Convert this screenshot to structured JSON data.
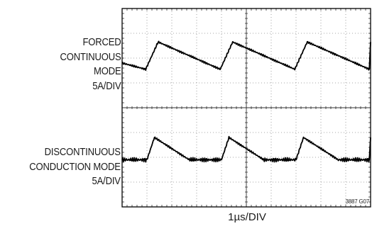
{
  "chart_data": {
    "type": "line",
    "subtype": "oscilloscope-trace",
    "divisions": {
      "x": 10,
      "y": 8
    },
    "grid": true,
    "xlabel": "1µs/DIV",
    "figure_id": "3887 G07",
    "colors": {
      "trace": "#000000",
      "grid": "#8a8a8a",
      "frame": "#000000"
    },
    "x_unit": "µs",
    "y_unit": "div",
    "traces": [
      {
        "label_lines": [
          "FORCED",
          "CONTINUOUS",
          "MODE",
          "5A/DIV"
        ],
        "x": [
          0,
          0.95,
          1.45,
          3.95,
          4.45,
          6.95,
          7.45,
          9.95,
          10
        ],
        "y": [
          5.8,
          5.55,
          6.65,
          5.55,
          6.65,
          5.55,
          6.65,
          5.55,
          6.65
        ]
      },
      {
        "label_lines": [
          "DISCONTINUOUS",
          "CONDUCTION MODE",
          "5A/DIV"
        ],
        "x": [
          0,
          1.0,
          1.3,
          2.7,
          3.0,
          4.0,
          4.3,
          5.7,
          6.0,
          7.0,
          7.3,
          8.7,
          9.0,
          9.95,
          10
        ],
        "y": [
          1.9,
          1.9,
          2.8,
          1.9,
          1.9,
          1.9,
          2.8,
          1.9,
          1.9,
          1.9,
          2.8,
          1.9,
          1.9,
          1.9,
          2.8
        ]
      }
    ]
  }
}
